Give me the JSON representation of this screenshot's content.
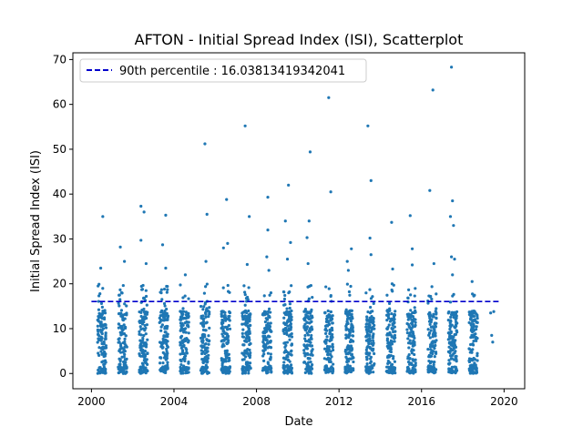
{
  "chart_data": {
    "type": "scatter",
    "title": "AFTON - Initial Spread Index (ISI), Scatterplot",
    "xlabel": "Date",
    "ylabel": "Initial Spread Index (ISI)",
    "xlim": [
      1999.1,
      2021.0
    ],
    "ylim": [
      -3.4,
      71.5
    ],
    "x_ticks": [
      2000,
      2004,
      2008,
      2012,
      2016,
      2020
    ],
    "y_ticks": [
      0,
      10,
      20,
      30,
      40,
      50,
      60,
      70
    ],
    "grid": false,
    "legend_position": "top-left",
    "reference_line": {
      "label": "90th percentile : 16.03813419342041",
      "value": 16.03813419342041,
      "x_range": [
        2000.0,
        2019.8
      ],
      "color": "#0000cc",
      "style": "dashed"
    },
    "series": [
      {
        "color": "#1f77b4",
        "seasons": [
          {
            "year": 2000,
            "start": 2000.3,
            "end": 2000.72
          },
          {
            "year": 2001,
            "start": 2001.3,
            "end": 2001.72
          },
          {
            "year": 2002,
            "start": 2002.3,
            "end": 2002.72
          },
          {
            "year": 2003,
            "start": 2003.3,
            "end": 2003.72
          },
          {
            "year": 2004,
            "start": 2004.3,
            "end": 2004.72
          },
          {
            "year": 2005,
            "start": 2005.3,
            "end": 2005.72
          },
          {
            "year": 2006,
            "start": 2006.3,
            "end": 2006.72
          },
          {
            "year": 2007,
            "start": 2007.3,
            "end": 2007.72
          },
          {
            "year": 2008,
            "start": 2008.3,
            "end": 2008.72
          },
          {
            "year": 2009,
            "start": 2009.3,
            "end": 2009.72
          },
          {
            "year": 2010,
            "start": 2010.3,
            "end": 2010.72
          },
          {
            "year": 2011,
            "start": 2011.3,
            "end": 2011.72
          },
          {
            "year": 2012,
            "start": 2012.3,
            "end": 2012.72
          },
          {
            "year": 2013,
            "start": 2013.3,
            "end": 2013.72
          },
          {
            "year": 2014,
            "start": 2014.3,
            "end": 2014.72
          },
          {
            "year": 2015,
            "start": 2015.3,
            "end": 2015.72
          },
          {
            "year": 2016,
            "start": 2016.3,
            "end": 2016.72
          },
          {
            "year": 2017,
            "start": 2017.3,
            "end": 2017.72
          },
          {
            "year": 2018,
            "start": 2018.3,
            "end": 2018.72
          }
        ],
        "outliers": [
          {
            "x": 2000.45,
            "y": 23.5
          },
          {
            "x": 2000.55,
            "y": 35.0
          },
          {
            "x": 2001.4,
            "y": 28.2
          },
          {
            "x": 2001.6,
            "y": 25.0
          },
          {
            "x": 2002.4,
            "y": 37.3
          },
          {
            "x": 2002.55,
            "y": 36.0
          },
          {
            "x": 2002.4,
            "y": 29.7
          },
          {
            "x": 2002.65,
            "y": 24.5
          },
          {
            "x": 2003.45,
            "y": 28.7
          },
          {
            "x": 2003.6,
            "y": 35.3
          },
          {
            "x": 2003.6,
            "y": 23.5
          },
          {
            "x": 2004.55,
            "y": 22.0
          },
          {
            "x": 2005.5,
            "y": 51.2
          },
          {
            "x": 2005.6,
            "y": 35.5
          },
          {
            "x": 2005.55,
            "y": 25.0
          },
          {
            "x": 2006.4,
            "y": 28.0
          },
          {
            "x": 2006.55,
            "y": 38.8
          },
          {
            "x": 2006.6,
            "y": 29.0
          },
          {
            "x": 2007.45,
            "y": 55.2
          },
          {
            "x": 2007.65,
            "y": 35.0
          },
          {
            "x": 2007.55,
            "y": 24.3
          },
          {
            "x": 2008.55,
            "y": 39.3
          },
          {
            "x": 2008.55,
            "y": 32.0
          },
          {
            "x": 2008.5,
            "y": 26.0
          },
          {
            "x": 2008.6,
            "y": 23.0
          },
          {
            "x": 2009.4,
            "y": 34.0
          },
          {
            "x": 2009.55,
            "y": 42.0
          },
          {
            "x": 2009.65,
            "y": 29.2
          },
          {
            "x": 2009.5,
            "y": 25.5
          },
          {
            "x": 2010.45,
            "y": 30.3
          },
          {
            "x": 2010.55,
            "y": 34.0
          },
          {
            "x": 2010.6,
            "y": 49.4
          },
          {
            "x": 2010.5,
            "y": 24.5
          },
          {
            "x": 2011.5,
            "y": 61.5
          },
          {
            "x": 2011.6,
            "y": 40.5
          },
          {
            "x": 2012.4,
            "y": 25.0
          },
          {
            "x": 2012.6,
            "y": 27.8
          },
          {
            "x": 2012.45,
            "y": 23.0
          },
          {
            "x": 2013.4,
            "y": 55.2
          },
          {
            "x": 2013.55,
            "y": 43.0
          },
          {
            "x": 2013.5,
            "y": 30.2
          },
          {
            "x": 2013.55,
            "y": 26.5
          },
          {
            "x": 2014.55,
            "y": 33.7
          },
          {
            "x": 2014.6,
            "y": 23.3
          },
          {
            "x": 2015.45,
            "y": 35.2
          },
          {
            "x": 2015.55,
            "y": 27.8
          },
          {
            "x": 2015.55,
            "y": 24.2
          },
          {
            "x": 2016.4,
            "y": 40.8
          },
          {
            "x": 2016.55,
            "y": 63.2
          },
          {
            "x": 2016.6,
            "y": 24.5
          },
          {
            "x": 2017.45,
            "y": 68.3
          },
          {
            "x": 2017.5,
            "y": 38.5
          },
          {
            "x": 2017.4,
            "y": 35.0
          },
          {
            "x": 2017.55,
            "y": 33.0
          },
          {
            "x": 2017.45,
            "y": 26.0
          },
          {
            "x": 2017.6,
            "y": 25.5
          },
          {
            "x": 2017.5,
            "y": 22.0
          },
          {
            "x": 2018.45,
            "y": 20.5
          },
          {
            "x": 2019.35,
            "y": 13.5
          },
          {
            "x": 2019.4,
            "y": 8.5
          },
          {
            "x": 2019.45,
            "y": 7.0
          },
          {
            "x": 2019.5,
            "y": 13.8
          }
        ]
      }
    ]
  }
}
